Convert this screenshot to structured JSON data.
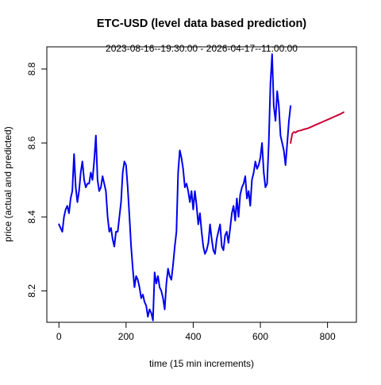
{
  "chart_data": {
    "type": "line",
    "title": "ETC-USD (level data based prediction)",
    "subtitle": "2023-08-16--19:30:00  -  2026-04-17--11:00:00",
    "xlabel": "time (15 min increments)",
    "ylabel": "price (actual and predicted)",
    "xlim": [
      -36,
      886
    ],
    "ylim": [
      8.115,
      8.86
    ],
    "xticks": [
      0,
      200,
      400,
      600,
      800
    ],
    "yticks": [
      8.2,
      8.4,
      8.6,
      8.8
    ],
    "xtick_labels": [
      "0",
      "200",
      "400",
      "600",
      "800"
    ],
    "ytick_labels": [
      "8.2",
      "8.4",
      "8.6",
      "8.8"
    ],
    "colors": {
      "actual": "#0000EE",
      "predicted": "#CD0033"
    },
    "series": [
      {
        "role": "actual",
        "x": [
          0,
          5,
          10,
          15,
          20,
          25,
          30,
          35,
          40,
          45,
          50,
          55,
          60,
          65,
          70,
          75,
          80,
          85,
          90,
          95,
          100,
          105,
          110,
          115,
          120,
          125,
          130,
          135,
          140,
          145,
          150,
          155,
          160,
          165,
          170,
          175,
          180,
          185,
          190,
          195,
          200,
          205,
          210,
          215,
          220,
          225,
          230,
          235,
          240,
          245,
          250,
          255,
          260,
          265,
          270,
          275,
          280,
          285,
          290,
          295,
          300,
          305,
          310,
          315,
          320,
          325,
          330,
          335,
          340,
          345,
          350,
          355,
          360,
          365,
          370,
          375,
          380,
          385,
          390,
          395,
          400,
          405,
          410,
          415,
          420,
          425,
          430,
          435,
          440,
          445,
          450,
          455,
          460,
          465,
          470,
          475,
          480,
          485,
          490,
          495,
          500,
          505,
          510,
          515,
          520,
          525,
          530,
          535,
          540,
          545,
          550,
          555,
          560,
          565,
          570,
          575,
          580,
          585,
          590,
          595,
          600,
          605,
          610,
          615,
          620,
          625,
          630,
          635,
          640,
          645,
          650,
          655,
          660,
          665,
          670,
          675,
          680,
          685,
          690
        ],
        "y": [
          8.38,
          8.37,
          8.36,
          8.4,
          8.42,
          8.43,
          8.41,
          8.45,
          8.47,
          8.57,
          8.48,
          8.44,
          8.47,
          8.52,
          8.55,
          8.5,
          8.48,
          8.49,
          8.49,
          8.52,
          8.5,
          8.55,
          8.62,
          8.5,
          8.47,
          8.48,
          8.51,
          8.49,
          8.47,
          8.4,
          8.36,
          8.37,
          8.34,
          8.32,
          8.36,
          8.36,
          8.4,
          8.44,
          8.52,
          8.55,
          8.54,
          8.48,
          8.4,
          8.32,
          8.26,
          8.21,
          8.24,
          8.23,
          8.21,
          8.18,
          8.19,
          8.17,
          8.16,
          8.13,
          8.15,
          8.14,
          8.12,
          8.25,
          8.22,
          8.24,
          8.21,
          8.2,
          8.18,
          8.15,
          8.22,
          8.26,
          8.24,
          8.23,
          8.27,
          8.32,
          8.36,
          8.52,
          8.58,
          8.56,
          8.53,
          8.48,
          8.49,
          8.47,
          8.44,
          8.47,
          8.42,
          8.47,
          8.43,
          8.38,
          8.41,
          8.36,
          8.32,
          8.3,
          8.31,
          8.33,
          8.38,
          8.34,
          8.31,
          8.3,
          8.34,
          8.36,
          8.38,
          8.32,
          8.31,
          8.35,
          8.36,
          8.33,
          8.37,
          8.41,
          8.43,
          8.39,
          8.45,
          8.4,
          8.46,
          8.48,
          8.49,
          8.51,
          8.45,
          8.47,
          8.43,
          8.5,
          8.52,
          8.55,
          8.53,
          8.54,
          8.56,
          8.6,
          8.52,
          8.48,
          8.49,
          8.6,
          8.76,
          8.84,
          8.7,
          8.66,
          8.74,
          8.7,
          8.62,
          8.6,
          8.58,
          8.54,
          8.6,
          8.66,
          8.7
        ]
      },
      {
        "role": "predicted",
        "x": [
          690,
          695,
          700,
          705,
          710,
          720,
          730,
          740,
          750,
          760,
          770,
          780,
          790,
          800,
          810,
          820,
          830,
          840,
          848
        ],
        "y": [
          8.6,
          8.625,
          8.63,
          8.628,
          8.632,
          8.634,
          8.637,
          8.639,
          8.643,
          8.647,
          8.651,
          8.655,
          8.659,
          8.663,
          8.667,
          8.671,
          8.675,
          8.679,
          8.683
        ]
      }
    ]
  }
}
